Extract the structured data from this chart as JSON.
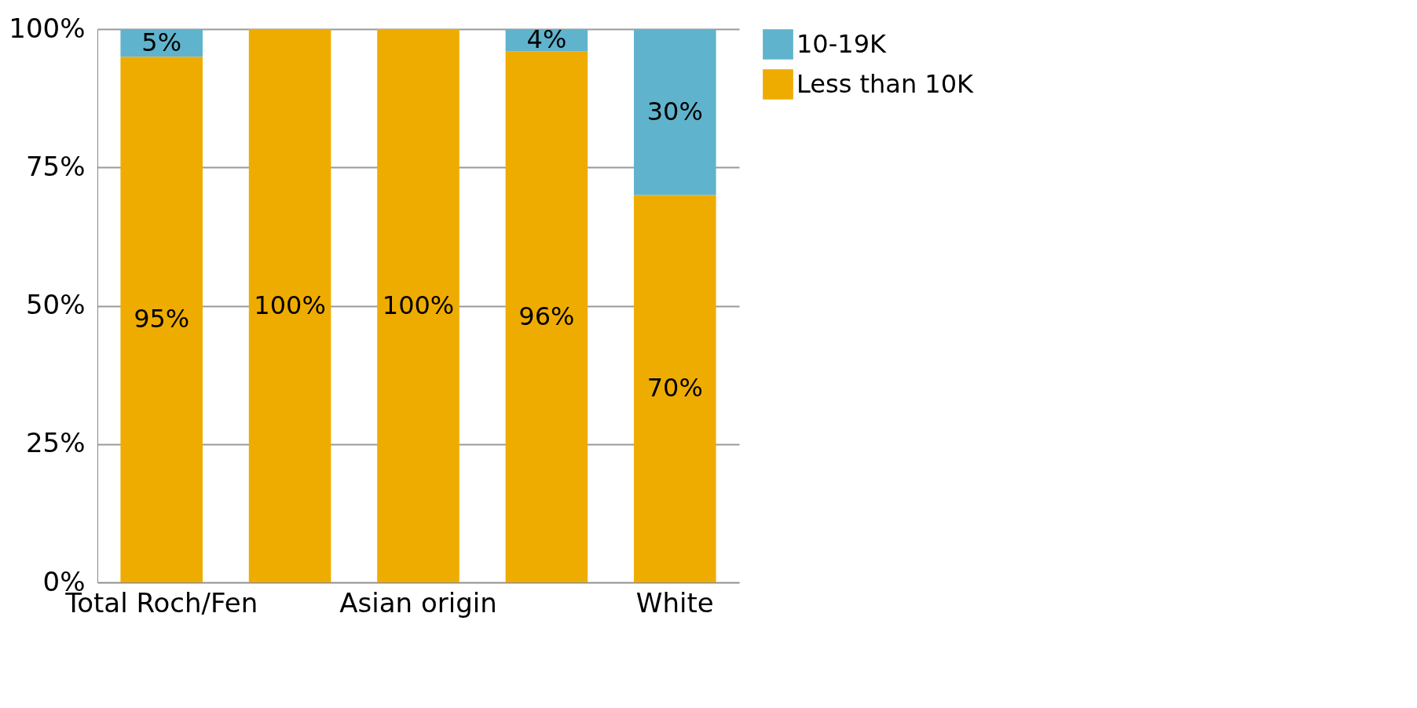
{
  "chart_data": {
    "type": "bar",
    "stacked": true,
    "categories": [
      "Total Roch/Fen",
      null,
      "Asian origin",
      null,
      "White"
    ],
    "series": [
      {
        "name": "Less than 10K",
        "color": "#efac00",
        "values": [
          95,
          100,
          100,
          96,
          70
        ],
        "value_labels": [
          "95%",
          "100%",
          "100%",
          "96%",
          "70%"
        ]
      },
      {
        "name": "10-19K",
        "color": "#60b3cc",
        "values": [
          5,
          0,
          0,
          4,
          30
        ],
        "value_labels": [
          "5%",
          null,
          null,
          "4%",
          "30%"
        ]
      }
    ],
    "ylim": [
      0,
      100
    ],
    "yticks": [
      {
        "value": 0,
        "label": "0%"
      },
      {
        "value": 25,
        "label": "25%"
      },
      {
        "value": 50,
        "label": "50%"
      },
      {
        "value": 75,
        "label": "75%"
      },
      {
        "value": 100,
        "label": "100%"
      }
    ],
    "grid": "y",
    "legend": "right"
  }
}
